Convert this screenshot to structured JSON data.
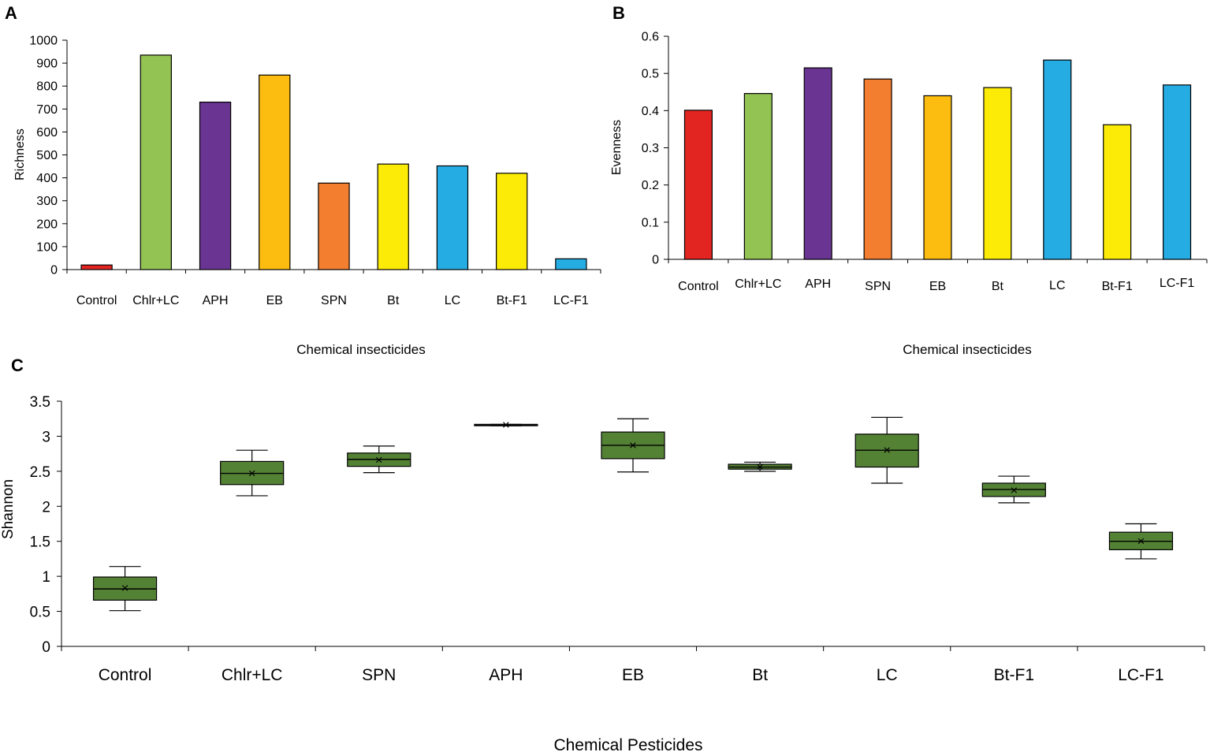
{
  "chart_data": [
    {
      "panel": "A",
      "type": "bar",
      "categories": [
        "Control",
        "Chlr+LC",
        "APH",
        "EB",
        "SPN",
        "Bt",
        "LC",
        "Bt-F1",
        "LC-F1"
      ],
      "values": [
        20,
        935,
        730,
        848,
        377,
        460,
        452,
        420,
        47
      ],
      "colors": [
        "#e32522",
        "#92c353",
        "#6a3592",
        "#fdbd10",
        "#f47e30",
        "#fcea07",
        "#25ace3",
        "#fcea07",
        "#25ace3"
      ],
      "xlabel": "Chemical insecticides",
      "ylabel": "Richness",
      "ylim": [
        0,
        1000
      ],
      "yticks": [
        0,
        100,
        200,
        300,
        400,
        500,
        600,
        700,
        800,
        900,
        1000
      ]
    },
    {
      "panel": "B",
      "type": "bar",
      "categories": [
        "Control",
        "Chlr+LC",
        "APH",
        "SPN",
        "EB",
        "Bt",
        "LC",
        "Bt-F1",
        "LC-F1"
      ],
      "values": [
        0.401,
        0.446,
        0.515,
        0.485,
        0.44,
        0.462,
        0.536,
        0.362,
        0.469
      ],
      "colors": [
        "#e32522",
        "#92c353",
        "#6a3592",
        "#f47e30",
        "#fdbd10",
        "#fcea07",
        "#25ace3",
        "#fcea07",
        "#25ace3"
      ],
      "xlabel": "Chemical insecticides",
      "ylabel": "Evenness",
      "ylim": [
        0,
        0.6
      ],
      "yticks": [
        "0",
        "0.1",
        "0.2",
        "0.3",
        "0.4",
        "0.5",
        "0.6"
      ]
    },
    {
      "panel": "C",
      "type": "box",
      "categories": [
        "Control",
        "Chlr+LC",
        "SPN",
        "APH",
        "EB",
        "Bt",
        "LC",
        "Bt-F1",
        "LC-F1"
      ],
      "boxes": [
        {
          "min": 0.51,
          "q1": 0.66,
          "median": 0.82,
          "q3": 0.99,
          "max": 1.14,
          "mean": 0.83
        },
        {
          "min": 2.15,
          "q1": 2.31,
          "median": 2.47,
          "q3": 2.64,
          "max": 2.8,
          "mean": 2.47
        },
        {
          "min": 2.48,
          "q1": 2.57,
          "median": 2.67,
          "q3": 2.76,
          "max": 2.86,
          "mean": 2.66
        },
        {
          "min": 3.15,
          "q1": 3.15,
          "median": 3.16,
          "q3": 3.17,
          "max": 3.17,
          "mean": 3.16
        },
        {
          "min": 2.49,
          "q1": 2.68,
          "median": 2.87,
          "q3": 3.06,
          "max": 3.25,
          "mean": 2.87
        },
        {
          "min": 2.5,
          "q1": 2.53,
          "median": 2.56,
          "q3": 2.6,
          "max": 2.63,
          "mean": 2.56
        },
        {
          "min": 2.33,
          "q1": 2.56,
          "median": 2.8,
          "q3": 3.03,
          "max": 3.27,
          "mean": 2.8
        },
        {
          "min": 2.05,
          "q1": 2.14,
          "median": 2.24,
          "q3": 2.33,
          "max": 2.43,
          "mean": 2.23
        },
        {
          "min": 1.25,
          "q1": 1.38,
          "median": 1.5,
          "q3": 1.63,
          "max": 1.75,
          "mean": 1.5
        }
      ],
      "box_color": "#548235",
      "xlabel": "Chemical Pesticides",
      "ylabel": "Shannon",
      "ylim": [
        0,
        3.5
      ],
      "yticks": [
        "0",
        "0.5",
        "1",
        "1.5",
        "2",
        "2.5",
        "3",
        "3.5"
      ]
    }
  ],
  "panel_labels": {
    "a": "A",
    "b": "B",
    "c": "C"
  },
  "mean_marker": "×"
}
